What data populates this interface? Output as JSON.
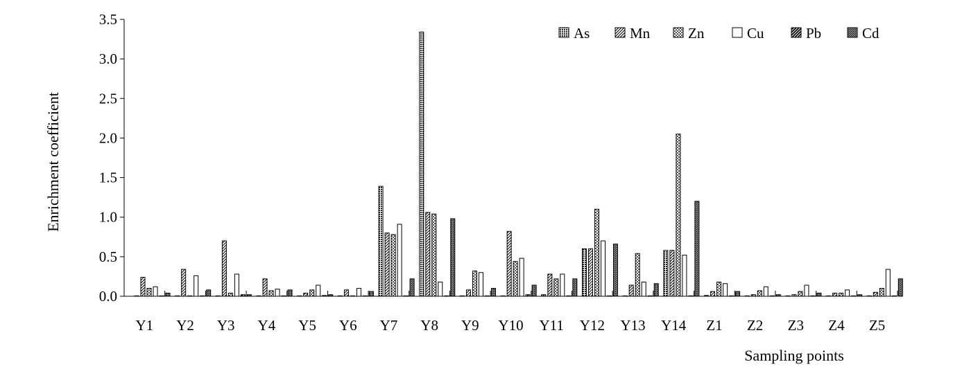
{
  "chart_data": {
    "type": "bar",
    "title": "",
    "xlabel": "Sampling points",
    "ylabel": "Enrichment coefficient",
    "ylim": [
      0,
      3.5
    ],
    "yticks": [
      "0.0",
      "0.5",
      "1.0",
      "1.5",
      "2.0",
      "2.5",
      "3.0",
      "3.5"
    ],
    "grid": false,
    "legend_position": "top-right",
    "categories": [
      "Y1",
      "Y2",
      "Y3",
      "Y4",
      "Y5",
      "Y6",
      "Y7",
      "Y8",
      "Y9",
      "Y10",
      "Y11",
      "Y12",
      "Y13",
      "Y14",
      "Z1",
      "Z2",
      "Z3",
      "Z4",
      "Z5"
    ],
    "series": [
      {
        "name": "As",
        "pattern": "dense-dots",
        "values": [
          0.0,
          0.0,
          0.0,
          0.0,
          0.0,
          0.0,
          1.39,
          3.34,
          0.0,
          0.0,
          0.02,
          0.6,
          0.0,
          0.58,
          0.01,
          0.0,
          0.0,
          0.0,
          0.0
        ]
      },
      {
        "name": "Mn",
        "pattern": "diagonal-hatch",
        "values": [
          0.24,
          0.34,
          0.7,
          0.22,
          0.04,
          0.08,
          0.8,
          1.06,
          0.08,
          0.82,
          0.28,
          0.6,
          0.14,
          0.58,
          0.06,
          0.02,
          0.02,
          0.04,
          0.05
        ]
      },
      {
        "name": "Zn",
        "pattern": "checker",
        "values": [
          0.1,
          0.0,
          0.04,
          0.07,
          0.08,
          0.0,
          0.78,
          1.04,
          0.32,
          0.44,
          0.22,
          1.1,
          0.54,
          2.05,
          0.18,
          0.07,
          0.06,
          0.04,
          0.1
        ]
      },
      {
        "name": "Cu",
        "pattern": "white",
        "values": [
          0.12,
          0.26,
          0.28,
          0.09,
          0.14,
          0.1,
          0.91,
          0.18,
          0.3,
          0.48,
          0.28,
          0.7,
          0.18,
          0.52,
          0.16,
          0.12,
          0.14,
          0.08,
          0.34
        ]
      },
      {
        "name": "Pb",
        "pattern": "thick-diagonal",
        "values": [
          0.0,
          0.0,
          0.02,
          0.0,
          0.01,
          0.0,
          0.0,
          0.0,
          0.0,
          0.02,
          0.0,
          0.0,
          0.0,
          0.0,
          0.0,
          0.0,
          0.0,
          0.0,
          0.0
        ]
      },
      {
        "name": "Cd",
        "pattern": "dark-dots",
        "values": [
          0.04,
          0.08,
          0.02,
          0.08,
          0.02,
          0.06,
          0.22,
          0.98,
          0.1,
          0.14,
          0.22,
          0.66,
          0.16,
          1.2,
          0.06,
          0.02,
          0.04,
          0.02,
          0.22
        ]
      }
    ]
  }
}
